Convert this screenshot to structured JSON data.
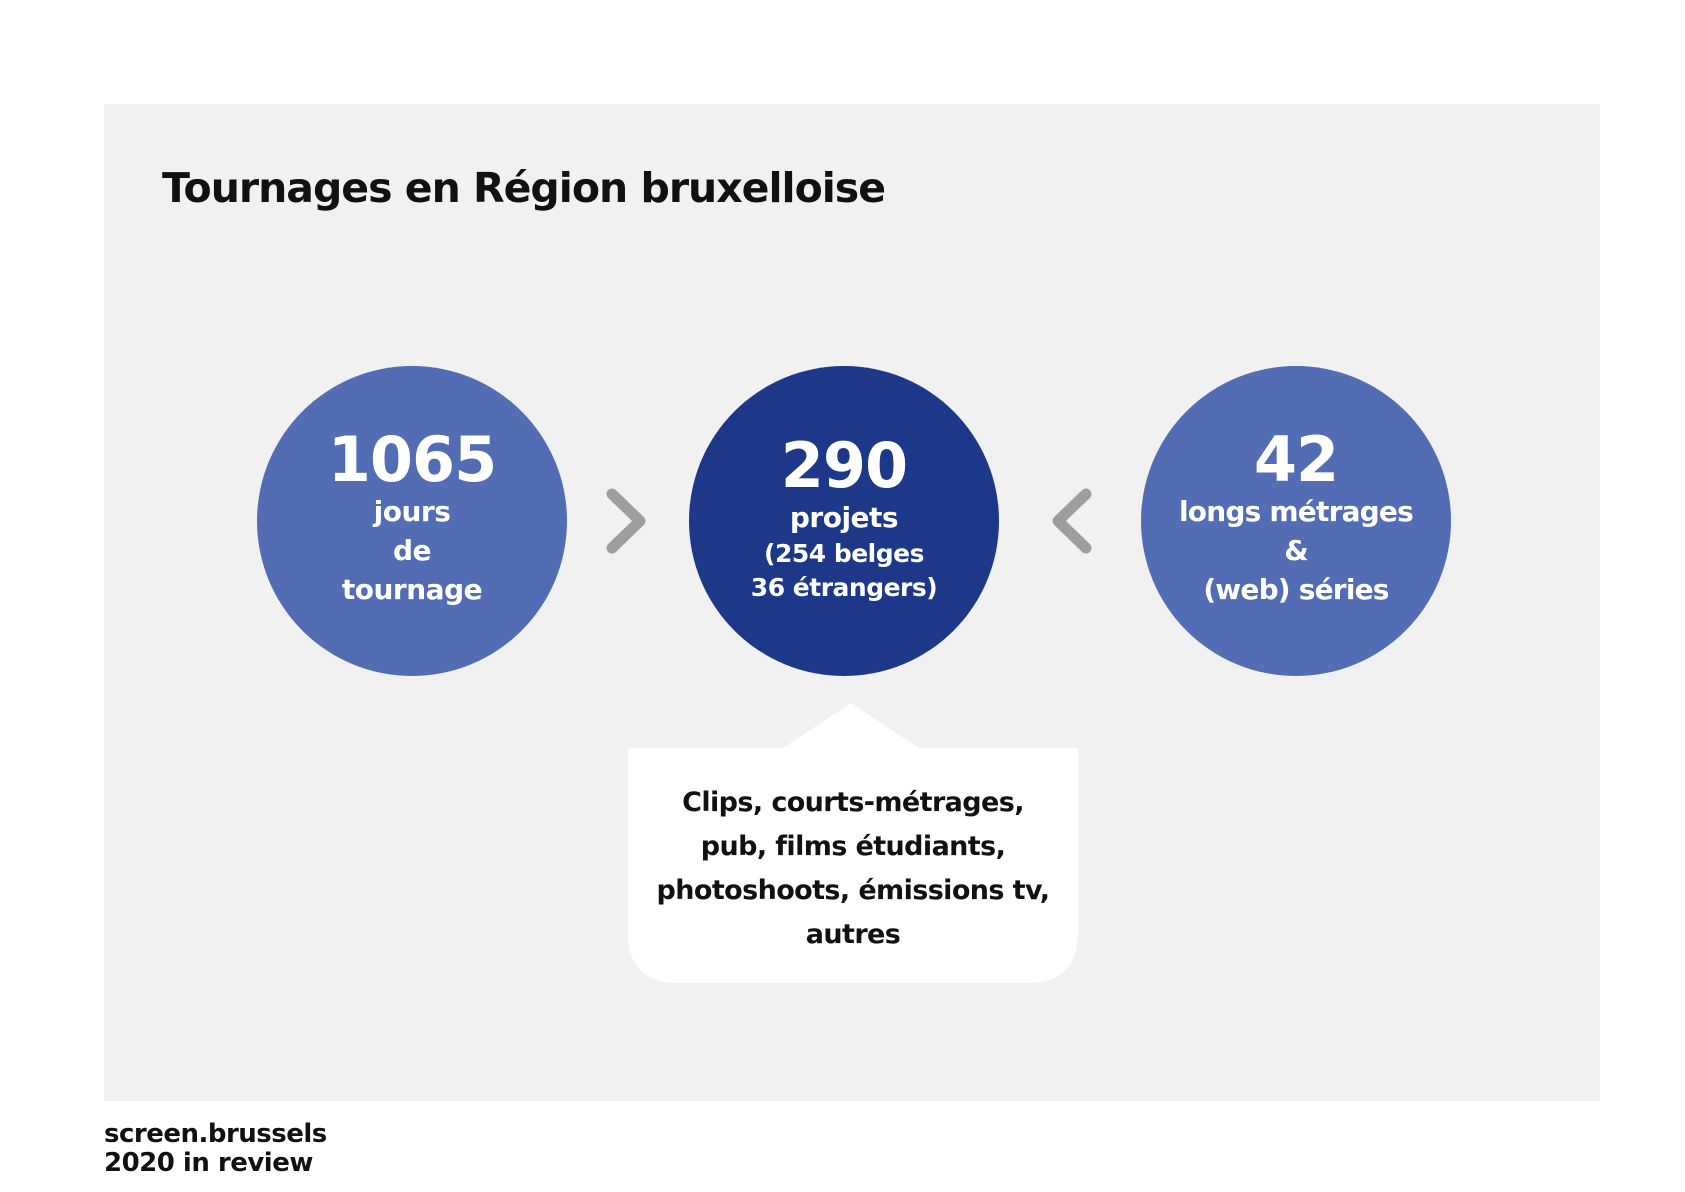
{
  "title": "Tournages en Région bruxelloise",
  "colors": {
    "panel_bg": "#f1f1f1",
    "circle_light": "#526db3",
    "circle_dark": "#1e3889",
    "chevron": "#9e9e9e",
    "callout_bg": "#ffffff"
  },
  "stats": [
    {
      "value": "1065",
      "lines": [
        "jours",
        "de",
        "tournage"
      ]
    },
    {
      "value": "290",
      "label": "projets",
      "details": [
        "(254 belges",
        "36 étrangers)"
      ]
    },
    {
      "value": "42",
      "lines": [
        "longs métrages",
        "&",
        "(web) séries"
      ]
    }
  ],
  "icons": {
    "left_chevron": "chevron-right-icon",
    "right_chevron": "chevron-left-icon"
  },
  "callout": {
    "lines": [
      "Clips, courts-métrages,",
      "pub, films étudiants,",
      "photoshoots, émissions tv,",
      "autres"
    ]
  },
  "footer": {
    "brand": "screen.brussels",
    "subtitle": "2020 in review"
  }
}
